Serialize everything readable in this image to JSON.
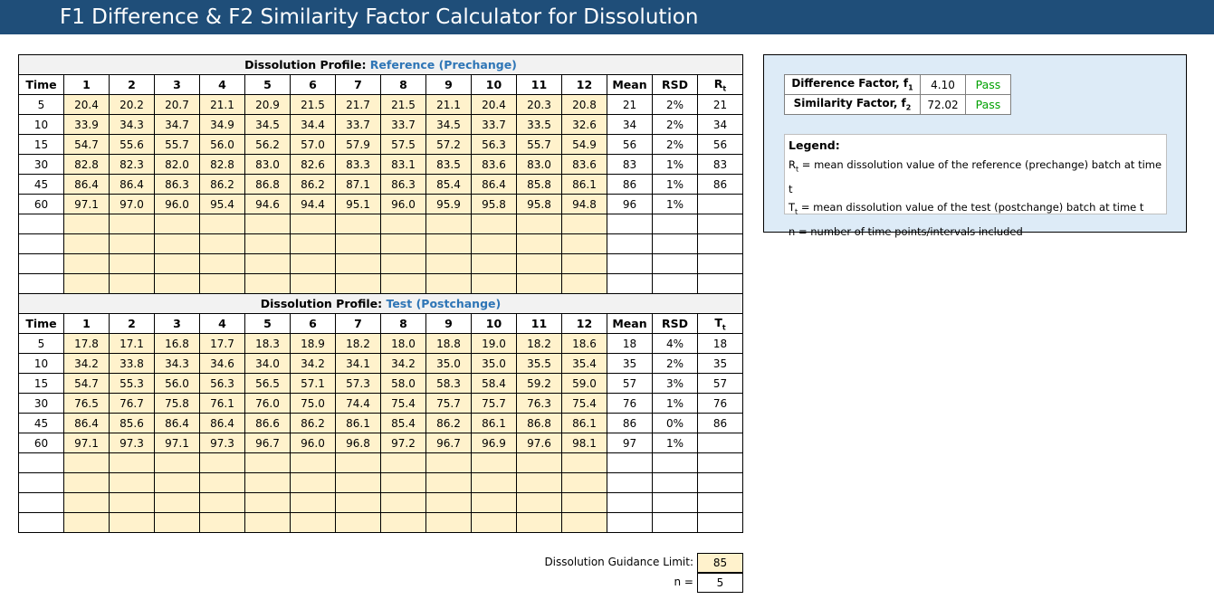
{
  "title": "F1 Difference & F2 Similarity Factor Calculator for Dissolution",
  "headers": {
    "time": "Time",
    "units": [
      "1",
      "2",
      "3",
      "4",
      "5",
      "6",
      "7",
      "8",
      "9",
      "10",
      "11",
      "12"
    ],
    "mean": "Mean",
    "rsd": "RSD"
  },
  "reference": {
    "banner_prefix": "Dissolution Profile: ",
    "banner_name": "Reference (Prechange)",
    "last_header": "R",
    "last_header_sub": "t",
    "rows": [
      {
        "time": "5",
        "values": [
          "20.4",
          "20.2",
          "20.7",
          "21.1",
          "20.9",
          "21.5",
          "21.7",
          "21.5",
          "21.1",
          "20.4",
          "20.3",
          "20.8"
        ],
        "mean": "21",
        "rsd": "2%",
        "last": "21"
      },
      {
        "time": "10",
        "values": [
          "33.9",
          "34.3",
          "34.7",
          "34.9",
          "34.5",
          "34.4",
          "33.7",
          "33.7",
          "34.5",
          "33.7",
          "33.5",
          "32.6"
        ],
        "mean": "34",
        "rsd": "2%",
        "last": "34"
      },
      {
        "time": "15",
        "values": [
          "54.7",
          "55.6",
          "55.7",
          "56.0",
          "56.2",
          "57.0",
          "57.9",
          "57.5",
          "57.2",
          "56.3",
          "55.7",
          "54.9"
        ],
        "mean": "56",
        "rsd": "2%",
        "last": "56"
      },
      {
        "time": "30",
        "values": [
          "82.8",
          "82.3",
          "82.0",
          "82.8",
          "83.0",
          "82.6",
          "83.3",
          "83.1",
          "83.5",
          "83.6",
          "83.0",
          "83.6"
        ],
        "mean": "83",
        "rsd": "1%",
        "last": "83"
      },
      {
        "time": "45",
        "values": [
          "86.4",
          "86.4",
          "86.3",
          "86.2",
          "86.8",
          "86.2",
          "87.1",
          "86.3",
          "85.4",
          "86.4",
          "85.8",
          "86.1"
        ],
        "mean": "86",
        "rsd": "1%",
        "last": "86"
      },
      {
        "time": "60",
        "values": [
          "97.1",
          "97.0",
          "96.0",
          "95.4",
          "94.6",
          "94.4",
          "95.1",
          "96.0",
          "95.9",
          "95.8",
          "95.8",
          "94.8"
        ],
        "mean": "96",
        "rsd": "1%",
        "last": ""
      },
      {
        "time": "",
        "values": [
          "",
          "",
          "",
          "",
          "",
          "",
          "",
          "",
          "",
          "",
          "",
          ""
        ],
        "mean": "",
        "rsd": "",
        "last": ""
      },
      {
        "time": "",
        "values": [
          "",
          "",
          "",
          "",
          "",
          "",
          "",
          "",
          "",
          "",
          "",
          ""
        ],
        "mean": "",
        "rsd": "",
        "last": ""
      },
      {
        "time": "",
        "values": [
          "",
          "",
          "",
          "",
          "",
          "",
          "",
          "",
          "",
          "",
          "",
          ""
        ],
        "mean": "",
        "rsd": "",
        "last": ""
      },
      {
        "time": "",
        "values": [
          "",
          "",
          "",
          "",
          "",
          "",
          "",
          "",
          "",
          "",
          "",
          ""
        ],
        "mean": "",
        "rsd": "",
        "last": ""
      }
    ]
  },
  "test": {
    "banner_prefix": "Dissolution Profile: ",
    "banner_name": "Test (Postchange)",
    "last_header": "T",
    "last_header_sub": "t",
    "rows": [
      {
        "time": "5",
        "values": [
          "17.8",
          "17.1",
          "16.8",
          "17.7",
          "18.3",
          "18.9",
          "18.2",
          "18.0",
          "18.8",
          "19.0",
          "18.2",
          "18.6"
        ],
        "mean": "18",
        "rsd": "4%",
        "last": "18"
      },
      {
        "time": "10",
        "values": [
          "34.2",
          "33.8",
          "34.3",
          "34.6",
          "34.0",
          "34.2",
          "34.1",
          "34.2",
          "35.0",
          "35.0",
          "35.5",
          "35.4"
        ],
        "mean": "35",
        "rsd": "2%",
        "last": "35"
      },
      {
        "time": "15",
        "values": [
          "54.7",
          "55.3",
          "56.0",
          "56.3",
          "56.5",
          "57.1",
          "57.3",
          "58.0",
          "58.3",
          "58.4",
          "59.2",
          "59.0"
        ],
        "mean": "57",
        "rsd": "3%",
        "last": "57"
      },
      {
        "time": "30",
        "values": [
          "76.5",
          "76.7",
          "75.8",
          "76.1",
          "76.0",
          "75.0",
          "74.4",
          "75.4",
          "75.7",
          "75.7",
          "76.3",
          "75.4"
        ],
        "mean": "76",
        "rsd": "1%",
        "last": "76"
      },
      {
        "time": "45",
        "values": [
          "86.4",
          "85.6",
          "86.4",
          "86.4",
          "86.6",
          "86.2",
          "86.1",
          "85.4",
          "86.2",
          "86.1",
          "86.8",
          "86.1"
        ],
        "mean": "86",
        "rsd": "0%",
        "last": "86"
      },
      {
        "time": "60",
        "values": [
          "97.1",
          "97.3",
          "97.1",
          "97.3",
          "96.7",
          "96.0",
          "96.8",
          "97.2",
          "96.7",
          "96.9",
          "97.6",
          "98.1"
        ],
        "mean": "97",
        "rsd": "1%",
        "last": ""
      },
      {
        "time": "",
        "values": [
          "",
          "",
          "",
          "",
          "",
          "",
          "",
          "",
          "",
          "",
          "",
          ""
        ],
        "mean": "",
        "rsd": "",
        "last": ""
      },
      {
        "time": "",
        "values": [
          "",
          "",
          "",
          "",
          "",
          "",
          "",
          "",
          "",
          "",
          "",
          ""
        ],
        "mean": "",
        "rsd": "",
        "last": ""
      },
      {
        "time": "",
        "values": [
          "",
          "",
          "",
          "",
          "",
          "",
          "",
          "",
          "",
          "",
          "",
          ""
        ],
        "mean": "",
        "rsd": "",
        "last": ""
      },
      {
        "time": "",
        "values": [
          "",
          "",
          "",
          "",
          "",
          "",
          "",
          "",
          "",
          "",
          "",
          ""
        ],
        "mean": "",
        "rsd": "",
        "last": ""
      }
    ]
  },
  "factors": {
    "difference": {
      "label": "Difference Factor, f",
      "sub": "1",
      "value": "4.10",
      "status": "Pass"
    },
    "similarity": {
      "label": "Similarity Factor, f",
      "sub": "2",
      "value": "72.02",
      "status": "Pass"
    },
    "status_color": "#00a000"
  },
  "legend": {
    "title": "Legend:",
    "items": [
      {
        "symbol": "R",
        "sub": "t",
        "text": " = mean dissolution value of the reference (prechange) batch at time t"
      },
      {
        "symbol": "T",
        "sub": "t",
        "text": " = mean dissolution value of the test (postchange) batch at time t"
      },
      {
        "symbol": "n",
        "sub": "",
        "text": " = number of time points/intervals included"
      }
    ]
  },
  "guidance": {
    "label": "Dissolution Guidance Limit:",
    "value": "85"
  },
  "n": {
    "label": "n =",
    "value": "5"
  },
  "colors": {
    "title_bar": "#1f4e79",
    "input_cell": "#fff2cc",
    "panel_bg": "#ddebf7",
    "profile_name": "#2e75b6"
  }
}
